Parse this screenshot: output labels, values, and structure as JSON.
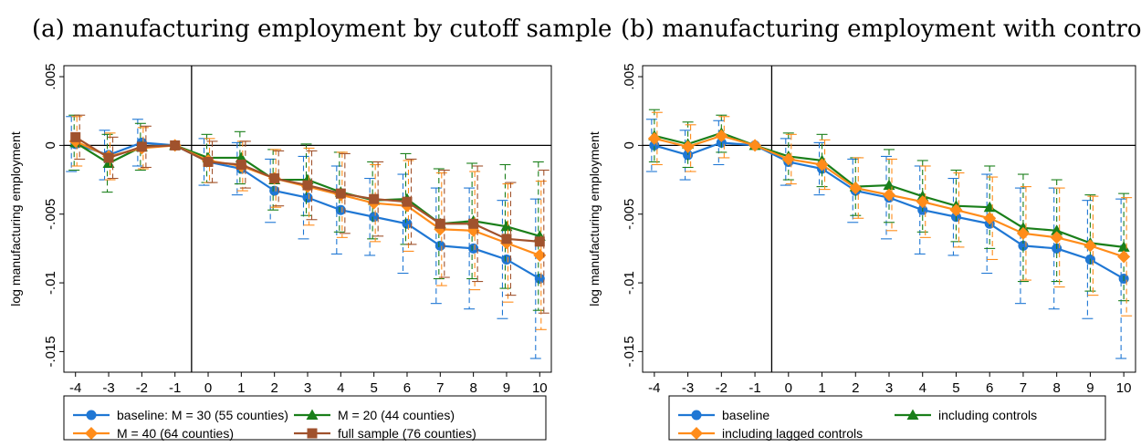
{
  "chart_data": [
    {
      "type": "line",
      "title": "(a) manufacturing employment by cutoff sample",
      "ylabel": "log manufacturing employment",
      "xlabel": "",
      "x": [
        -4,
        -3,
        -2,
        -1,
        0,
        1,
        2,
        3,
        4,
        5,
        6,
        7,
        8,
        9,
        10
      ],
      "xlim": [
        -4.35,
        10.35
      ],
      "ylim": [
        -0.0165,
        0.0058
      ],
      "yticks": [
        0.005,
        0,
        -0.005,
        -0.01,
        -0.015
      ],
      "ytick_labels": [
        ".005",
        "0",
        "-.005",
        "-.01",
        "-.015"
      ],
      "vline": -0.5,
      "hline": 0,
      "series": [
        {
          "name": "baseline: M = 30 (55 counties)",
          "color": "#1f77d4",
          "marker": "circle",
          "values": [
            0.0001,
            -0.0007,
            0.0002,
            0,
            -0.0012,
            -0.0017,
            -0.0033,
            -0.0038,
            -0.0047,
            -0.0052,
            -0.0057,
            -0.0073,
            -0.0075,
            -0.0083,
            -0.0097
          ],
          "lower": [
            -0.0019,
            -0.0025,
            -0.0015,
            0,
            -0.0029,
            -0.0036,
            -0.0056,
            -0.0068,
            -0.0079,
            -0.008,
            -0.0093,
            -0.0115,
            -0.0119,
            -0.0126,
            -0.0155
          ],
          "upper": [
            0.0021,
            0.0011,
            0.0019,
            0,
            0.0005,
            0.0002,
            -0.001,
            -0.0008,
            -0.0015,
            -0.0024,
            -0.0021,
            -0.0031,
            -0.0031,
            -0.004,
            -0.0039
          ]
        },
        {
          "name": "M = 20 (44 counties)",
          "color": "#1a7f1a",
          "marker": "triangle",
          "values": [
            0.0002,
            -0.0013,
            -0.0001,
            0,
            -0.0009,
            -0.0009,
            -0.0025,
            -0.0025,
            -0.0034,
            -0.004,
            -0.0039,
            -0.0057,
            -0.0055,
            -0.0059,
            -0.0066
          ],
          "lower": [
            -0.0018,
            -0.0034,
            -0.0018,
            0,
            -0.0027,
            -0.0028,
            -0.0047,
            -0.0051,
            -0.0063,
            -0.0068,
            -0.0072,
            -0.0097,
            -0.0097,
            -0.0104,
            -0.012
          ],
          "upper": [
            0.0022,
            0.0008,
            0.0016,
            0,
            0.0008,
            0.001,
            -0.0003,
            0.0001,
            -0.0005,
            -0.0012,
            -0.0006,
            -0.0017,
            -0.0013,
            -0.0014,
            -0.0012
          ]
        },
        {
          "name": "M = 40 (64 counties)",
          "color": "#ff8c1a",
          "marker": "diamond",
          "values": [
            0.0003,
            -0.0008,
            -0.0002,
            0,
            -0.0011,
            -0.0015,
            -0.0024,
            -0.003,
            -0.0036,
            -0.0042,
            -0.0044,
            -0.0061,
            -0.0062,
            -0.0071,
            -0.008
          ],
          "lower": [
            -0.0015,
            -0.0025,
            -0.0017,
            0,
            -0.0027,
            -0.0033,
            -0.0045,
            -0.0058,
            -0.0067,
            -0.007,
            -0.0077,
            -0.0102,
            -0.0105,
            -0.0114,
            -0.0134
          ],
          "upper": [
            0.0021,
            0.0009,
            0.0013,
            0,
            0.0005,
            0.0003,
            -0.0003,
            -0.0002,
            -0.0005,
            -0.0014,
            -0.0011,
            -0.002,
            -0.0019,
            -0.0028,
            -0.0026
          ]
        },
        {
          "name": "full sample (76 counties)",
          "color": "#a0522d",
          "marker": "square",
          "values": [
            0.0006,
            -0.0009,
            -0.0001,
            0,
            -0.0012,
            -0.0014,
            -0.0024,
            -0.0029,
            -0.0035,
            -0.0039,
            -0.0041,
            -0.0057,
            -0.0057,
            -0.0068,
            -0.007
          ],
          "lower": [
            -0.001,
            -0.0024,
            -0.0016,
            0,
            -0.0027,
            -0.0031,
            -0.0044,
            -0.0054,
            -0.0064,
            -0.0066,
            -0.0072,
            -0.0096,
            -0.0099,
            -0.0109,
            -0.0122
          ],
          "upper": [
            0.0022,
            0.0006,
            0.0014,
            0,
            0.0003,
            0.0003,
            -0.0004,
            -0.0004,
            -0.0006,
            -0.0012,
            -0.001,
            -0.0018,
            -0.0015,
            -0.0027,
            -0.0018
          ]
        }
      ],
      "legend_placement": "bottom",
      "grid": false
    },
    {
      "type": "line",
      "title": "(b) manufacturing employment with controls",
      "ylabel": "log manufacturing employment",
      "xlabel": "",
      "x": [
        -4,
        -3,
        -2,
        -1,
        0,
        1,
        2,
        3,
        4,
        5,
        6,
        7,
        8,
        9,
        10
      ],
      "xlim": [
        -4.35,
        10.35
      ],
      "ylim": [
        -0.0165,
        0.0058
      ],
      "yticks": [
        0.005,
        0,
        -0.005,
        -0.01,
        -0.015
      ],
      "ytick_labels": [
        ".005",
        "0",
        "-.005",
        "-.01",
        "-.015"
      ],
      "vline": -0.5,
      "hline": 0,
      "series": [
        {
          "name": "baseline",
          "color": "#1f77d4",
          "marker": "circle",
          "values": [
            0.0,
            -0.0007,
            0.0002,
            0,
            -0.0012,
            -0.0017,
            -0.0033,
            -0.0038,
            -0.0047,
            -0.0052,
            -0.0057,
            -0.0073,
            -0.0075,
            -0.0083,
            -0.0097
          ],
          "lower": [
            -0.0019,
            -0.0025,
            -0.0014,
            0,
            -0.0029,
            -0.0036,
            -0.0056,
            -0.0068,
            -0.0079,
            -0.008,
            -0.0093,
            -0.0115,
            -0.0119,
            -0.0126,
            -0.0155
          ],
          "upper": [
            0.0019,
            0.0011,
            0.0018,
            0,
            0.0005,
            0.0002,
            -0.001,
            -0.0008,
            -0.0015,
            -0.0024,
            -0.0021,
            -0.0031,
            -0.0031,
            -0.004,
            -0.0039
          ]
        },
        {
          "name": "including controls",
          "color": "#1a7f1a",
          "marker": "triangle",
          "values": [
            0.0007,
            0.0001,
            0.0009,
            0,
            -0.0008,
            -0.0011,
            -0.003,
            -0.0029,
            -0.0037,
            -0.0044,
            -0.0045,
            -0.006,
            -0.0062,
            -0.0071,
            -0.0074
          ],
          "lower": [
            -0.0012,
            -0.0016,
            -0.0005,
            0,
            -0.0025,
            -0.003,
            -0.0051,
            -0.0056,
            -0.0063,
            -0.007,
            -0.0075,
            -0.0099,
            -0.0099,
            -0.0106,
            -0.0113
          ],
          "upper": [
            0.0026,
            0.0017,
            0.0022,
            0,
            0.0009,
            0.0008,
            -0.0009,
            -0.0003,
            -0.0011,
            -0.0018,
            -0.0015,
            -0.0021,
            -0.0025,
            -0.0036,
            -0.0035
          ]
        },
        {
          "name": "including lagged controls",
          "color": "#ff8c1a",
          "marker": "diamond",
          "values": [
            0.0005,
            -0.0001,
            0.0007,
            0,
            -0.001,
            -0.0014,
            -0.0031,
            -0.0036,
            -0.0041,
            -0.0047,
            -0.0053,
            -0.0064,
            -0.0067,
            -0.0073,
            -0.0081
          ],
          "lower": [
            -0.0014,
            -0.0019,
            -0.0009,
            0,
            -0.0028,
            -0.0032,
            -0.0053,
            -0.0062,
            -0.0067,
            -0.0074,
            -0.0083,
            -0.0098,
            -0.0103,
            -0.0109,
            -0.0124
          ],
          "upper": [
            0.0024,
            0.0015,
            0.0021,
            0,
            0.0008,
            0.0004,
            -0.0009,
            -0.001,
            -0.0015,
            -0.002,
            -0.0023,
            -0.003,
            -0.0031,
            -0.0037,
            -0.0038
          ]
        }
      ],
      "legend_placement": "bottom",
      "grid": false
    }
  ]
}
